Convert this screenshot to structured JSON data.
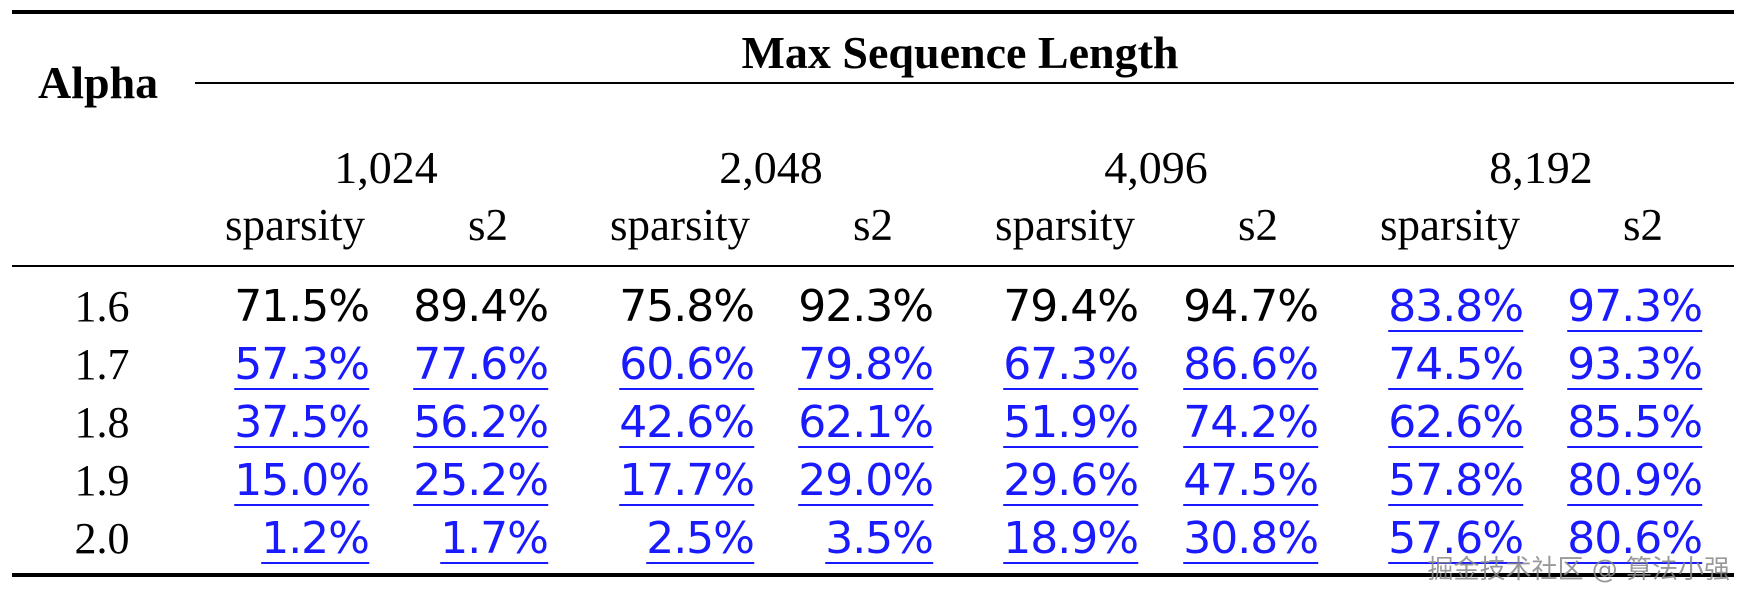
{
  "table": {
    "row_header_label": "Alpha",
    "group_header_label": "Max Sequence Length",
    "sequence_lengths": [
      "1,024",
      "2,048",
      "4,096",
      "8,192"
    ],
    "sub_headers": [
      "sparsity",
      "s2"
    ],
    "highlight_color": "#1a1aff",
    "rows": [
      {
        "alpha": "1.6",
        "cells": [
          {
            "value": "71.5%",
            "highlight": false
          },
          {
            "value": "89.4%",
            "highlight": false
          },
          {
            "value": "75.8%",
            "highlight": false
          },
          {
            "value": "92.3%",
            "highlight": false
          },
          {
            "value": "79.4%",
            "highlight": false
          },
          {
            "value": "94.7%",
            "highlight": false
          },
          {
            "value": "83.8%",
            "highlight": true
          },
          {
            "value": "97.3%",
            "highlight": true
          }
        ]
      },
      {
        "alpha": "1.7",
        "cells": [
          {
            "value": "57.3%",
            "highlight": true
          },
          {
            "value": "77.6%",
            "highlight": true
          },
          {
            "value": "60.6%",
            "highlight": true
          },
          {
            "value": "79.8%",
            "highlight": true
          },
          {
            "value": "67.3%",
            "highlight": true
          },
          {
            "value": "86.6%",
            "highlight": true
          },
          {
            "value": "74.5%",
            "highlight": true
          },
          {
            "value": "93.3%",
            "highlight": true
          }
        ]
      },
      {
        "alpha": "1.8",
        "cells": [
          {
            "value": "37.5%",
            "highlight": true
          },
          {
            "value": "56.2%",
            "highlight": true
          },
          {
            "value": "42.6%",
            "highlight": true
          },
          {
            "value": "62.1%",
            "highlight": true
          },
          {
            "value": "51.9%",
            "highlight": true
          },
          {
            "value": "74.2%",
            "highlight": true
          },
          {
            "value": "62.6%",
            "highlight": true
          },
          {
            "value": "85.5%",
            "highlight": true
          }
        ]
      },
      {
        "alpha": "1.9",
        "cells": [
          {
            "value": "15.0%",
            "highlight": true
          },
          {
            "value": "25.2%",
            "highlight": true
          },
          {
            "value": "17.7%",
            "highlight": true
          },
          {
            "value": "29.0%",
            "highlight": true
          },
          {
            "value": "29.6%",
            "highlight": true
          },
          {
            "value": "47.5%",
            "highlight": true
          },
          {
            "value": "57.8%",
            "highlight": true
          },
          {
            "value": "80.9%",
            "highlight": true
          }
        ]
      },
      {
        "alpha": "2.0",
        "cells": [
          {
            "value": "1.2%",
            "highlight": true
          },
          {
            "value": "1.7%",
            "highlight": true
          },
          {
            "value": "2.5%",
            "highlight": true
          },
          {
            "value": "3.5%",
            "highlight": true
          },
          {
            "value": "18.9%",
            "highlight": true
          },
          {
            "value": "30.8%",
            "highlight": true
          },
          {
            "value": "57.6%",
            "highlight": true
          },
          {
            "value": "80.6%",
            "highlight": true
          }
        ]
      }
    ]
  },
  "watermark": "掘金技术社区 @ 算法小强"
}
